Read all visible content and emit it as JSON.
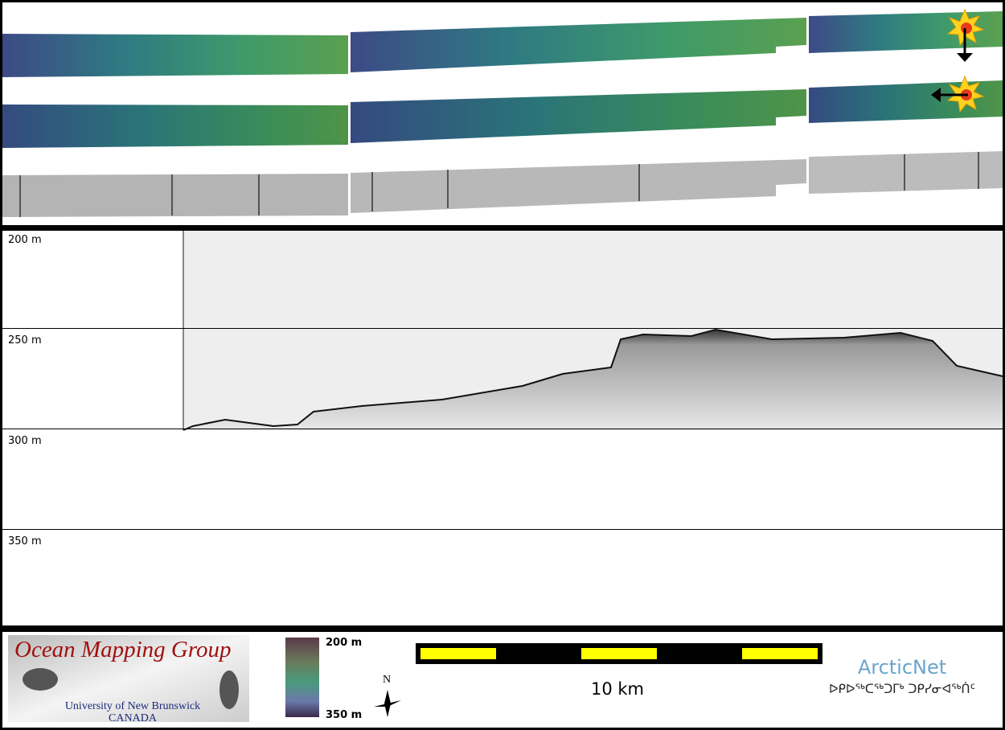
{
  "echogram": {
    "depth_labels": [
      "200 m",
      "250 m",
      "300 m",
      "350 m"
    ]
  },
  "footer": {
    "logo": {
      "title": "Ocean Mapping Group",
      "university": "University of New Brunswick",
      "country": "CANADA"
    },
    "colorbar": {
      "top_label": "200 m",
      "bottom_label": "350 m"
    },
    "compass": {
      "label": "N"
    },
    "scale_bar": {
      "label": "10 km"
    },
    "partner": {
      "name": "ArcticNet",
      "subtitle": "ᐅᑭᐅᖅᑕᖅᑐᒥᒃ ᑐᑭᓯᓂᐊᖅᑏᑦ"
    }
  }
}
